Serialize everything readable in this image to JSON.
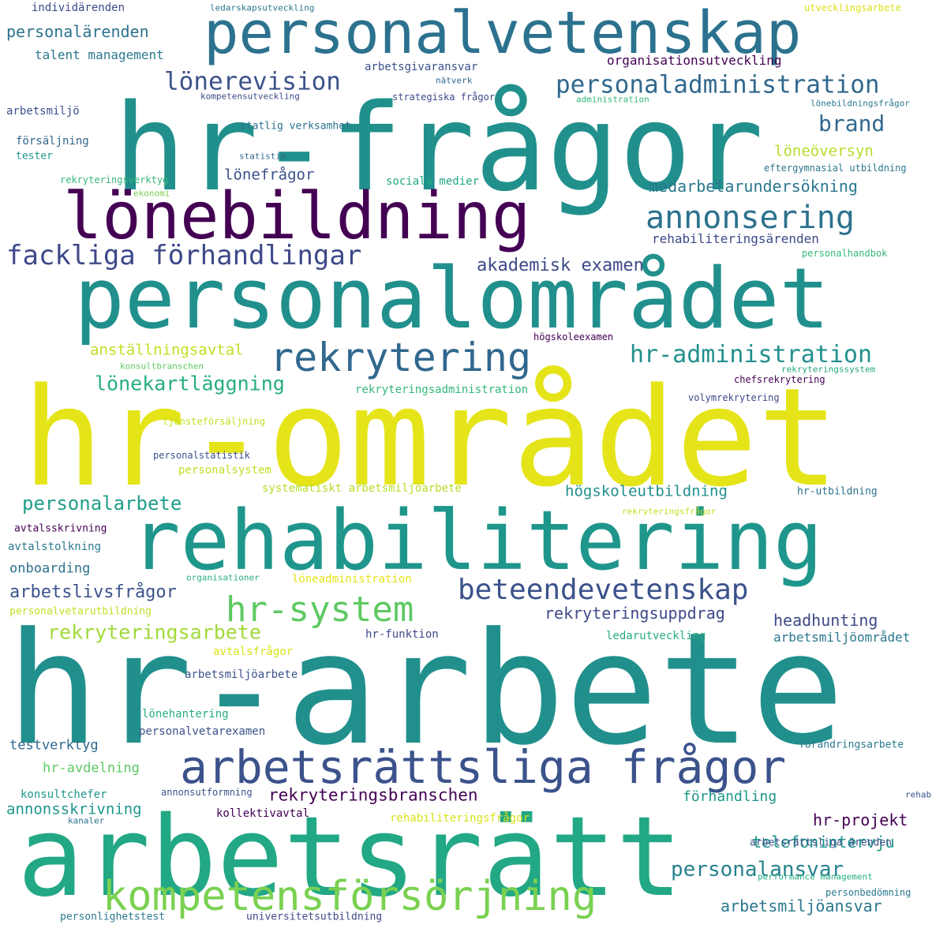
{
  "words": [
    {
      "text": "hr-arbete",
      "color": "#21908d"
    },
    {
      "text": "hr-området",
      "color": "#e5e419"
    },
    {
      "text": "hr-frågor",
      "color": "#21908d"
    },
    {
      "text": "arbetsrätt",
      "color": "#22a884"
    },
    {
      "text": "personalområdet",
      "color": "#21908d"
    },
    {
      "text": "rehabilitering",
      "color": "#1f968b"
    },
    {
      "text": "personalvetenskap",
      "color": "#2c728e"
    },
    {
      "text": "lönebildning",
      "color": "#440154"
    },
    {
      "text": "arbetsrättsliga frågor",
      "color": "#3b528b"
    },
    {
      "text": "kompetensförsörjning",
      "color": "#7ad151"
    },
    {
      "text": "hr-system",
      "color": "#5ec962"
    },
    {
      "text": "annonsering",
      "color": "#2c728e"
    },
    {
      "text": "rekrytering",
      "color": "#31688e"
    },
    {
      "text": "beteendevetenskap",
      "color": "#3b528b"
    },
    {
      "text": "fackliga förhandlingar",
      "color": "#3e4989"
    },
    {
      "text": "personaladministration",
      "color": "#31688e"
    },
    {
      "text": "lönerevision",
      "color": "#3b528b"
    },
    {
      "text": "hr-administration",
      "color": "#21908d"
    },
    {
      "text": "personalansvar",
      "color": "#26828e"
    },
    {
      "text": "rekryteringsarbete",
      "color": "#a0da39"
    },
    {
      "text": "lönekartläggning",
      "color": "#27ad81"
    },
    {
      "text": "personalarbete",
      "color": "#1f9e89"
    },
    {
      "text": "rekryteringsbranschen",
      "color": "#440154"
    },
    {
      "text": "rekryteringsuppdrag",
      "color": "#3e4989"
    },
    {
      "text": "arbetslivsfrågor",
      "color": "#3b528b"
    },
    {
      "text": "brand",
      "color": "#31688e"
    },
    {
      "text": "akademisk examen",
      "color": "#3e4989"
    },
    {
      "text": "medarbetarundersökning",
      "color": "#2a788e"
    },
    {
      "text": "arbetsmiljöansvar",
      "color": "#2a788e"
    },
    {
      "text": "telefonintervju",
      "color": "#1f968b"
    },
    {
      "text": "headhunting",
      "color": "#3e4989"
    },
    {
      "text": "hr-projekt",
      "color": "#440154"
    },
    {
      "text": "personalärenden",
      "color": "#2c728e"
    },
    {
      "text": "högskoleutbildning",
      "color": "#21908d"
    },
    {
      "text": "annonsskrivning",
      "color": "#1f968b"
    },
    {
      "text": "lönefrågor",
      "color": "#3b528b"
    },
    {
      "text": "löneöversyn",
      "color": "#b5de2b"
    },
    {
      "text": "anställningsavtal",
      "color": "#c2df23"
    },
    {
      "text": "rehabiliteringsärenden",
      "color": "#3e4989"
    },
    {
      "text": "förhandling",
      "color": "#1f968b"
    },
    {
      "text": "arbetsmiljöområdet",
      "color": "#2a788e"
    },
    {
      "text": "onboarding",
      "color": "#2c728e"
    },
    {
      "text": "testverktyg",
      "color": "#31688e"
    },
    {
      "text": "hr-avdelning",
      "color": "#5ec962"
    },
    {
      "text": "talent management",
      "color": "#2a788e"
    },
    {
      "text": "organisationsutveckling",
      "color": "#440154"
    },
    {
      "text": "arbetsgivaransvar",
      "color": "#3b528b"
    },
    {
      "text": "konsultchefer",
      "color": "#1f968b"
    },
    {
      "text": "kollektivavtal",
      "color": "#440154"
    },
    {
      "text": "rekryteringsadministration",
      "color": "#35b779"
    },
    {
      "text": "sociala medier",
      "color": "#22a884"
    },
    {
      "text": "systematiskt arbetsmiljöarbete",
      "color": "#b5de2b"
    },
    {
      "text": "personalsystem",
      "color": "#c2df23"
    },
    {
      "text": "löneadministration",
      "color": "#e5e419"
    },
    {
      "text": "avtalsfrågor",
      "color": "#d8e219"
    },
    {
      "text": "rehabiliteringsfrågor",
      "color": "#d8e219"
    },
    {
      "text": "arbetsmiljöarbete",
      "color": "#3b528b"
    },
    {
      "text": "personalvetarexamen",
      "color": "#3b528b"
    },
    {
      "text": "lönehantering",
      "color": "#27ad81"
    },
    {
      "text": "ledarutveckling",
      "color": "#27ad81"
    },
    {
      "text": "hr-funktion",
      "color": "#3e4989"
    },
    {
      "text": "personalvetarutbildning",
      "color": "#c2df23"
    },
    {
      "text": "avtalstolkning",
      "color": "#2a788e"
    },
    {
      "text": "avtalsskrivning",
      "color": "#440154"
    },
    {
      "text": "hr-utbildning",
      "color": "#2c728e"
    },
    {
      "text": "arbetsrättsliga ärenden",
      "color": "#3b528b"
    },
    {
      "text": "personbedömning",
      "color": "#2a788e"
    },
    {
      "text": "förändringsarbete",
      "color": "#2a788e"
    },
    {
      "text": "performance management",
      "color": "#27ad81"
    },
    {
      "text": "universitetsutbildning",
      "color": "#3e4989"
    },
    {
      "text": "personlighetstest",
      "color": "#2a788e"
    },
    {
      "text": "annonsutformning",
      "color": "#3b528b"
    },
    {
      "text": "kanaler",
      "color": "#2c728e"
    },
    {
      "text": "rehab",
      "color": "#3b528b"
    },
    {
      "text": "chefsrekrytering",
      "color": "#440154"
    },
    {
      "text": "högskoleexamen",
      "color": "#440154"
    },
    {
      "text": "volymrekrytering",
      "color": "#3e4989"
    },
    {
      "text": "rekryteringssystem",
      "color": "#22a884"
    },
    {
      "text": "konsultbranschen",
      "color": "#5ec962"
    },
    {
      "text": "tjänsteförsäljning",
      "color": "#c2df23"
    },
    {
      "text": "personalstatistik",
      "color": "#3b528b"
    },
    {
      "text": "organisationer",
      "color": "#27ad81"
    },
    {
      "text": "rekryteringsfrågor",
      "color": "#c2df23"
    },
    {
      "text": "personalhandbok",
      "color": "#35b779"
    },
    {
      "text": "eftergymnasial utbildning",
      "color": "#2a788e"
    },
    {
      "text": "lönebildningsfrågor",
      "color": "#2a788e"
    },
    {
      "text": "administration",
      "color": "#35b779"
    },
    {
      "text": "strategiska frågor",
      "color": "#3e4989"
    },
    {
      "text": "kompetensutveckling",
      "color": "#3e4989"
    },
    {
      "text": "nätverk",
      "color": "#31688e"
    },
    {
      "text": "statlig verksamhet",
      "color": "#2c728e"
    },
    {
      "text": "statistik",
      "color": "#31688e"
    },
    {
      "text": "rekryteringsverktyg",
      "color": "#35b779"
    },
    {
      "text": "ekonomi",
      "color": "#7ad151"
    },
    {
      "text": "arbetsmiljö",
      "color": "#3b528b"
    },
    {
      "text": "försäljning",
      "color": "#31688e"
    },
    {
      "text": "tester",
      "color": "#1f968b"
    },
    {
      "text": "individärenden",
      "color": "#3e4989"
    },
    {
      "text": "ledarskapsutveckling",
      "color": "#2a788e"
    },
    {
      "text": "utvecklingsarbete",
      "color": "#d8e219"
    }
  ]
}
